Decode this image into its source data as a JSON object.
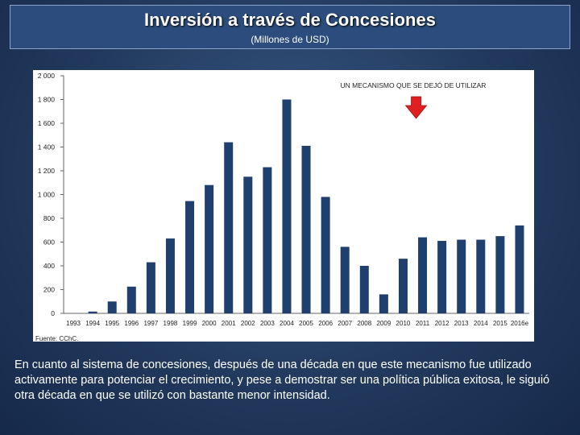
{
  "header": {
    "title": "Inversión a través de Concesiones",
    "subtitle": "(Millones de USD)"
  },
  "chart_data": {
    "type": "bar",
    "categories": [
      "1993",
      "1994",
      "1995",
      "1996",
      "1997",
      "1998",
      "1999",
      "2000",
      "2001",
      "2002",
      "2003",
      "2004",
      "2005",
      "2006",
      "2007",
      "2008",
      "2009",
      "2010",
      "2011",
      "2012",
      "2013",
      "2014",
      "2015",
      "2016e"
    ],
    "values": [
      0,
      15,
      100,
      225,
      430,
      630,
      945,
      1080,
      1440,
      1150,
      1230,
      1800,
      1410,
      980,
      560,
      400,
      160,
      460,
      640,
      610,
      620,
      620,
      650,
      740
    ],
    "y_ticks": [
      "0",
      "200",
      "400",
      "600",
      "800",
      "1 000",
      "1 200",
      "1 400",
      "1 600",
      "1 800",
      "2 000"
    ],
    "ylim": [
      0,
      2000
    ],
    "annotation": "UN MECANISMO QUE SE DEJÓ DE UTILIZAR",
    "bar_color": "#1f3f6e",
    "arrow_color": "#e02020",
    "grid": false
  },
  "source": "Fuente: CChC.",
  "caption": "En cuanto al sistema de concesiones, después de una década en que este mecanismo fue utilizado activamente para potenciar el crecimiento, y pese a demostrar ser una política pública exitosa, le siguió otra década en que se utilizó con bastante menor intensidad."
}
